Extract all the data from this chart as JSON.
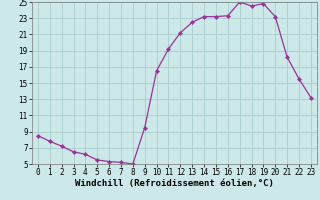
{
  "x": [
    0,
    1,
    2,
    3,
    4,
    5,
    6,
    7,
    8,
    9,
    10,
    11,
    12,
    13,
    14,
    15,
    16,
    17,
    18,
    19,
    20,
    21,
    22,
    23
  ],
  "y": [
    8.5,
    7.8,
    7.2,
    6.5,
    6.2,
    5.5,
    5.3,
    5.2,
    5.0,
    9.5,
    16.5,
    19.2,
    21.2,
    22.5,
    23.2,
    23.2,
    23.3,
    25.0,
    24.5,
    24.8,
    23.2,
    18.2,
    15.5,
    13.2
  ],
  "line_color": "#993399",
  "marker": "D",
  "marker_size": 2.2,
  "bg_color": "#cce8e8",
  "grid_color": "#aacccc",
  "xlabel": "Windchill (Refroidissement éolien,°C)",
  "ylim": [
    5,
    25
  ],
  "xlim_min": -0.5,
  "xlim_max": 23.5,
  "yticks": [
    5,
    7,
    9,
    11,
    13,
    15,
    17,
    19,
    21,
    23,
    25
  ],
  "xticks": [
    0,
    1,
    2,
    3,
    4,
    5,
    6,
    7,
    8,
    9,
    10,
    11,
    12,
    13,
    14,
    15,
    16,
    17,
    18,
    19,
    20,
    21,
    22,
    23
  ],
  "axis_fontsize": 6.5,
  "tick_fontsize": 5.5
}
